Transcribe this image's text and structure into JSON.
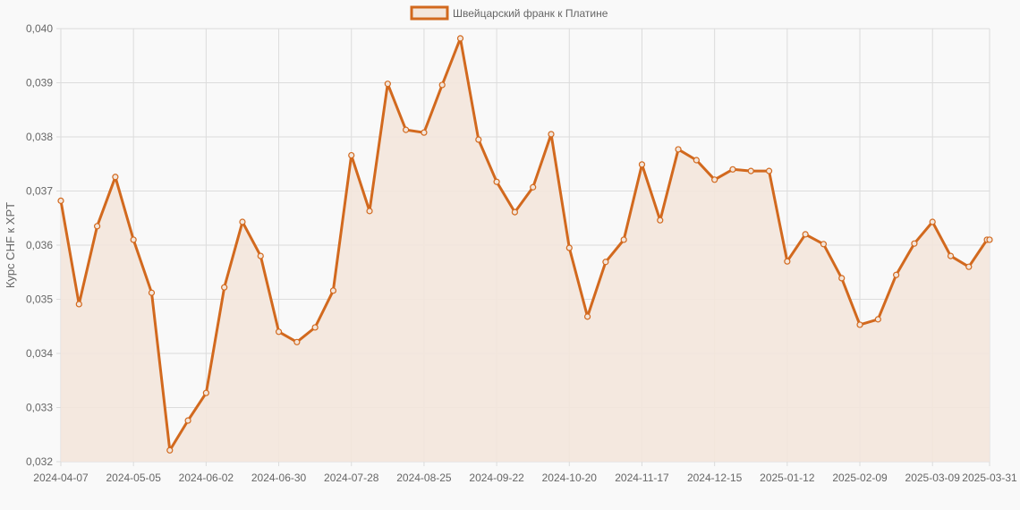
{
  "chart_data": {
    "type": "line",
    "title": "",
    "legend": {
      "position": "top",
      "entries": [
        "Швейцарский франк к Платине"
      ]
    },
    "xlabel": "",
    "ylabel": "Курс CHF к XPT",
    "ylim": [
      0.032,
      0.04
    ],
    "yticks": [
      "0,032",
      "0,033",
      "0,034",
      "0,035",
      "0,036",
      "0,037",
      "0,038",
      "0,039",
      "0,040"
    ],
    "xticks": [
      "2024-04-07",
      "2024-05-05",
      "2024-06-02",
      "2024-06-30",
      "2024-07-28",
      "2024-08-25",
      "2024-09-22",
      "2024-10-20",
      "2024-11-17",
      "2024-12-15",
      "2025-01-12",
      "2025-02-09",
      "2025-03-09",
      "2025-03-31"
    ],
    "grid": true,
    "colors": {
      "line": "#d2691e",
      "fill": "#f3e6dc",
      "grid": "#dcdcdc",
      "background": "#f9f9f9"
    },
    "series": [
      {
        "name": "Швейцарский франк к Платине",
        "x": [
          "2024-04-07",
          "2024-04-14",
          "2024-04-21",
          "2024-04-28",
          "2024-05-05",
          "2024-05-12",
          "2024-05-19",
          "2024-05-26",
          "2024-06-02",
          "2024-06-09",
          "2024-06-16",
          "2024-06-23",
          "2024-06-30",
          "2024-07-07",
          "2024-07-14",
          "2024-07-21",
          "2024-07-28",
          "2024-08-04",
          "2024-08-11",
          "2024-08-18",
          "2024-08-25",
          "2024-09-01",
          "2024-09-08",
          "2024-09-15",
          "2024-09-22",
          "2024-09-29",
          "2024-10-06",
          "2024-10-13",
          "2024-10-20",
          "2024-10-27",
          "2024-11-03",
          "2024-11-10",
          "2024-11-17",
          "2024-11-24",
          "2024-12-01",
          "2024-12-08",
          "2024-12-15",
          "2024-12-22",
          "2024-12-29",
          "2025-01-05",
          "2025-01-12",
          "2025-01-19",
          "2025-01-26",
          "2025-02-02",
          "2025-02-09",
          "2025-02-16",
          "2025-02-23",
          "2025-03-02",
          "2025-03-09",
          "2025-03-16",
          "2025-03-23",
          "2025-03-30",
          "2025-03-31"
        ],
        "values": [
          0.03682,
          0.03491,
          0.03635,
          0.03726,
          0.0361,
          0.03512,
          0.03221,
          0.03276,
          0.03327,
          0.03522,
          0.03643,
          0.0358,
          0.0344,
          0.03421,
          0.03448,
          0.03516,
          0.03766,
          0.03663,
          0.03898,
          0.03813,
          0.03808,
          0.03896,
          0.03982,
          0.03795,
          0.03717,
          0.03661,
          0.03707,
          0.03805,
          0.03595,
          0.03468,
          0.03569,
          0.0361,
          0.03749,
          0.03646,
          0.03777,
          0.03757,
          0.03721,
          0.0374,
          0.03737,
          0.03737,
          0.0357,
          0.0362,
          0.03602,
          0.03539,
          0.03453,
          0.03463,
          0.03545,
          0.03603,
          0.03643,
          0.0358,
          0.0356,
          0.0361,
          0.0361
        ]
      }
    ]
  },
  "legend": {
    "label": "Швейцарский франк к Платине"
  },
  "axes": {
    "ylabel": "Курс CHF к XPT"
  }
}
